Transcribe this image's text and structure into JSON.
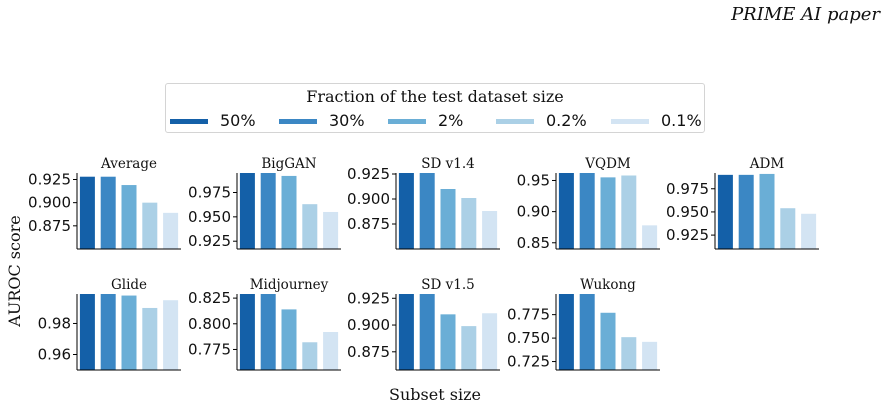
{
  "watermark": "PRIME AI paper",
  "legend": {
    "title": "Fraction of the test dataset size",
    "entries": [
      {
        "label": "50%",
        "color": "#1460a8"
      },
      {
        "label": "30%",
        "color": "#3b87c4"
      },
      {
        "label": "2%",
        "color": "#6aaed6"
      },
      {
        "label": "0.2%",
        "color": "#abd0e6"
      },
      {
        "label": "0.1%",
        "color": "#d3e4f3"
      }
    ]
  },
  "ylabel": "AUROC score",
  "xlabel": "Subset size",
  "chart_data": [
    {
      "type": "bar",
      "title": "Average",
      "categories": [
        "50%",
        "30%",
        "2%",
        "0.2%",
        "0.1%"
      ],
      "values": [
        0.928,
        0.928,
        0.919,
        0.9,
        0.889
      ],
      "ylim": [
        0.85,
        0.932
      ],
      "yticks": [
        0.875,
        0.9,
        0.925
      ],
      "tick_labels": [
        "0.875",
        "0.900",
        "0.925"
      ]
    },
    {
      "type": "bar",
      "title": "BigGAN",
      "categories": [
        "50%",
        "30%",
        "2%",
        "0.2%",
        "0.1%"
      ],
      "values": [
        0.995,
        0.995,
        0.992,
        0.963,
        0.955
      ],
      "ylim": [
        0.917,
        0.995
      ],
      "yticks": [
        0.925,
        0.95,
        0.975
      ],
      "tick_labels": [
        "0.925",
        "0.950",
        "0.975"
      ]
    },
    {
      "type": "bar",
      "title": "SD v1.4",
      "categories": [
        "50%",
        "30%",
        "2%",
        "0.2%",
        "0.1%"
      ],
      "values": [
        0.926,
        0.926,
        0.91,
        0.901,
        0.888
      ],
      "ylim": [
        0.85,
        0.926
      ],
      "yticks": [
        0.875,
        0.9,
        0.925
      ],
      "tick_labels": [
        "0.875",
        "0.900",
        "0.925"
      ]
    },
    {
      "type": "bar",
      "title": "VQDM",
      "categories": [
        "50%",
        "30%",
        "2%",
        "0.2%",
        "0.1%"
      ],
      "values": [
        0.962,
        0.962,
        0.955,
        0.958,
        0.878
      ],
      "ylim": [
        0.84,
        0.962
      ],
      "yticks": [
        0.85,
        0.9,
        0.95
      ],
      "tick_labels": [
        "0.85",
        "0.90",
        "0.95"
      ]
    },
    {
      "type": "bar",
      "title": "ADM",
      "categories": [
        "50%",
        "30%",
        "2%",
        "0.2%",
        "0.1%"
      ],
      "values": [
        0.99,
        0.99,
        0.991,
        0.954,
        0.948
      ],
      "ylim": [
        0.91,
        0.992
      ],
      "yticks": [
        0.925,
        0.95,
        0.975
      ],
      "tick_labels": [
        "0.925",
        "0.950",
        "0.975"
      ]
    },
    {
      "type": "bar",
      "title": "Glide",
      "categories": [
        "50%",
        "30%",
        "2%",
        "0.2%",
        "0.1%"
      ],
      "values": [
        0.999,
        0.999,
        0.998,
        0.99,
        0.995
      ],
      "ylim": [
        0.95,
        0.999
      ],
      "yticks": [
        0.96,
        0.98
      ],
      "tick_labels": [
        "0.96",
        "0.98"
      ]
    },
    {
      "type": "bar",
      "title": "Midjourney",
      "categories": [
        "50%",
        "30%",
        "2%",
        "0.2%",
        "0.1%"
      ],
      "values": [
        0.829,
        0.829,
        0.814,
        0.782,
        0.792
      ],
      "ylim": [
        0.755,
        0.829
      ],
      "yticks": [
        0.775,
        0.8,
        0.825
      ],
      "tick_labels": [
        "0.775",
        "0.800",
        "0.825"
      ]
    },
    {
      "type": "bar",
      "title": "SD v1.5",
      "categories": [
        "50%",
        "30%",
        "2%",
        "0.2%",
        "0.1%"
      ],
      "values": [
        0.929,
        0.929,
        0.91,
        0.899,
        0.911
      ],
      "ylim": [
        0.858,
        0.929
      ],
      "yticks": [
        0.875,
        0.9,
        0.925
      ],
      "tick_labels": [
        "0.875",
        "0.900",
        "0.925"
      ]
    },
    {
      "type": "bar",
      "title": "Wukong",
      "categories": [
        "50%",
        "30%",
        "2%",
        "0.2%",
        "0.1%"
      ],
      "values": [
        0.797,
        0.797,
        0.777,
        0.751,
        0.746
      ],
      "ylim": [
        0.716,
        0.797
      ],
      "yticks": [
        0.725,
        0.75,
        0.775
      ],
      "tick_labels": [
        "0.725",
        "0.750",
        "0.775"
      ]
    }
  ]
}
